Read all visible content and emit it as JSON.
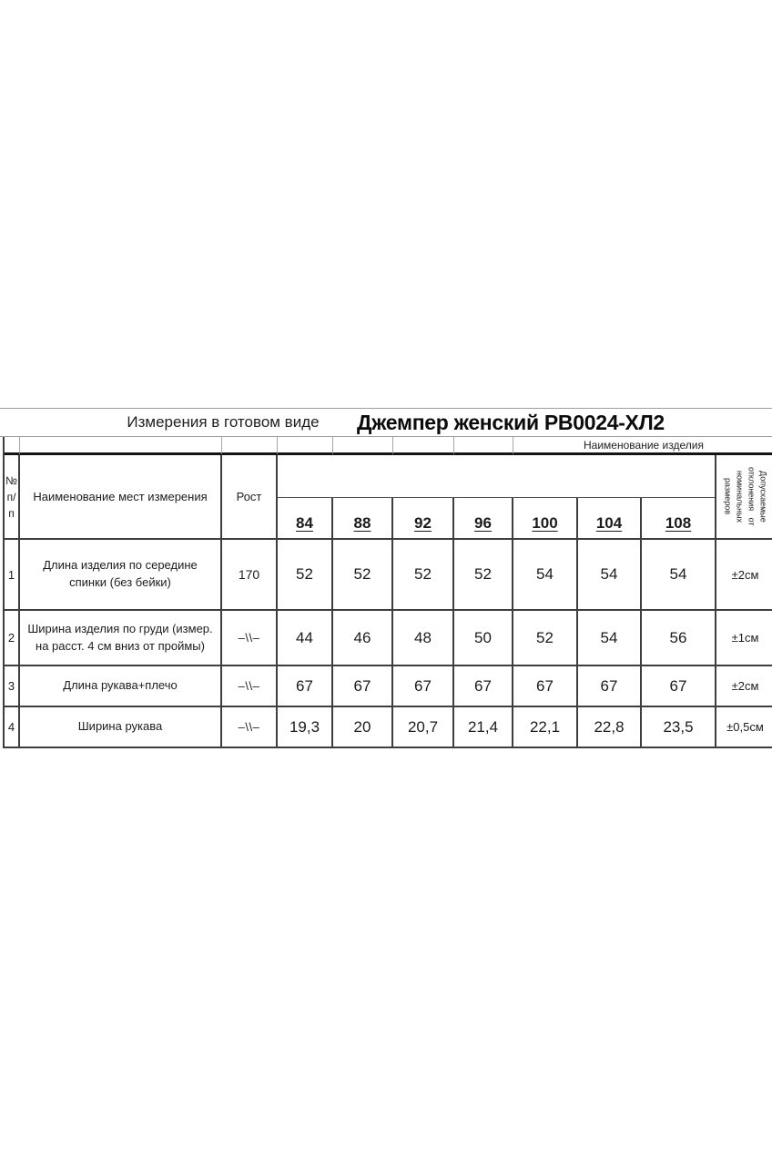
{
  "title": {
    "measurements_label": "Измерения в готовом виде",
    "product_name": "Джемпер женский РВ0024-ХЛ2"
  },
  "subheader": {
    "product_column_label": "Наименование изделия"
  },
  "header": {
    "num_lines": [
      "№",
      "п/",
      "п"
    ],
    "measurement_name_label": "Наименование мест измерения",
    "height_label": "Рост",
    "sizes": [
      "84",
      "88",
      "92",
      "96",
      "100",
      "104",
      "108"
    ],
    "tolerance_lines": [
      "Допускаемые",
      "отклонения   от",
      "номинальных",
      "размеров"
    ]
  },
  "rows": [
    {
      "num": "1",
      "name": "Длина изделия по середине спинки (без бейки)",
      "height": "170",
      "values": [
        "52",
        "52",
        "52",
        "52",
        "54",
        "54",
        "54"
      ],
      "tolerance": "±2см"
    },
    {
      "num": "2",
      "name": "Ширина изделия по груди (измер. на расст. 4 см вниз от проймы)",
      "height": "–\\\\–",
      "values": [
        "44",
        "46",
        "48",
        "50",
        "52",
        "54",
        "56"
      ],
      "tolerance": "±1см"
    },
    {
      "num": "3",
      "name": "Длина рукава+плечо",
      "height": "–\\\\–",
      "values": [
        "67",
        "67",
        "67",
        "67",
        "67",
        "67",
        "67"
      ],
      "tolerance": "±2см"
    },
    {
      "num": "4",
      "name": "Ширина рукава",
      "height": "–\\\\–",
      "values": [
        "19,3",
        "20",
        "20,7",
        "21,4",
        "22,1",
        "22,8",
        "23,5"
      ],
      "tolerance": "±0,5см"
    }
  ],
  "colors": {
    "grid_line": "#3e3e3e",
    "light_line": "#9e9e9e",
    "thick_line": "#141414",
    "text": "#1c1c1c",
    "background": "#ffffff"
  }
}
